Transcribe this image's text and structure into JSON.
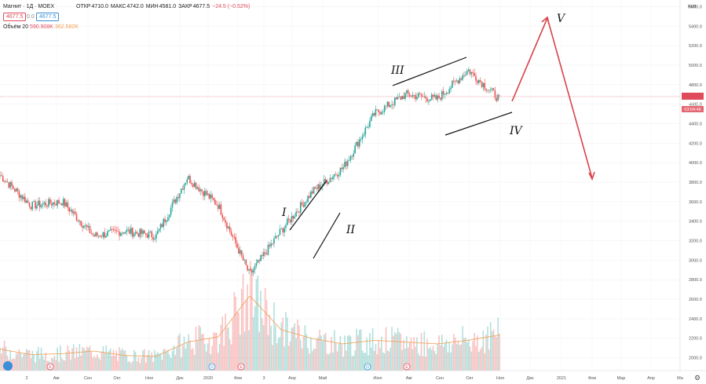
{
  "header": {
    "symbol": "Магнит · 1Д · MOEX",
    "open_label": "ОТКР",
    "open": "4710.0",
    "high_label": "МАКС",
    "high": "4742.0",
    "low_label": "МИН",
    "low": "4581.0",
    "close_label": "ЗАКР",
    "close": "4677.5",
    "change": "−24.5 (−0.52%)",
    "bid": "4677.5",
    "spread": "0.0",
    "ask": "4677.5",
    "volume_label": "Объём 20",
    "volume_value": "590.908K",
    "volume_ma": "362.582K"
  },
  "price_axis": {
    "currency": "RUB",
    "ticks": [
      "5600.0",
      "5400.0",
      "5200.0",
      "5000.0",
      "4800.0",
      "4600.0",
      "4400.0",
      "4200.0",
      "4000.0",
      "3800.0",
      "3600.0",
      "3400.0",
      "3200.0",
      "3000.0",
      "2800.0",
      "2600.0",
      "2400.0",
      "2200.0",
      "2000.0"
    ],
    "last_price": "4677.5",
    "countdown": "03:04:46"
  },
  "time_axis": {
    "labels": [
      "2",
      "Авг",
      "Сен",
      "Окт",
      "Ноя",
      "Дек",
      "2020",
      "Фев",
      "3",
      "Апр",
      "Май",
      "Июл",
      "Авг",
      "Сен",
      "Окт",
      "Ноя",
      "Дек",
      "2021",
      "Фев",
      "Мар",
      "Апр",
      "Ма"
    ]
  },
  "annotations": {
    "wave1": "I",
    "wave2": "II",
    "wave3": "III",
    "wave4": "IV",
    "wave5": "V"
  },
  "events": [
    "E",
    "D",
    "E",
    "D",
    "E"
  ],
  "colors": {
    "up": "#26a69a",
    "down": "#ef5350",
    "arrow": "#d9434c",
    "ma": "#f0a050",
    "last": "#e04b5b"
  },
  "chart_data": {
    "type": "candlestick",
    "title": "Магнит · 1Д · MOEX",
    "ylim": [
      1900,
      5700
    ],
    "x": [
      "2019-07",
      "2019-08",
      "2019-09",
      "2019-10",
      "2019-11",
      "2019-12",
      "2020-01",
      "2020-02",
      "2020-03",
      "2020-04",
      "2020-05",
      "2020-06",
      "2020-07",
      "2020-08",
      "2020-09",
      "2020-10",
      "2020-11"
    ],
    "series": [
      {
        "name": "Close",
        "values": [
          3870,
          3560,
          3600,
          3250,
          3300,
          3250,
          3850,
          3560,
          2850,
          3300,
          3700,
          3950,
          4500,
          4700,
          4650,
          4950,
          4650
        ]
      }
    ],
    "volume": [
      120,
      90,
      95,
      110,
      85,
      80,
      160,
      190,
      420,
      230,
      180,
      150,
      170,
      160,
      150,
      170,
      200
    ]
  }
}
